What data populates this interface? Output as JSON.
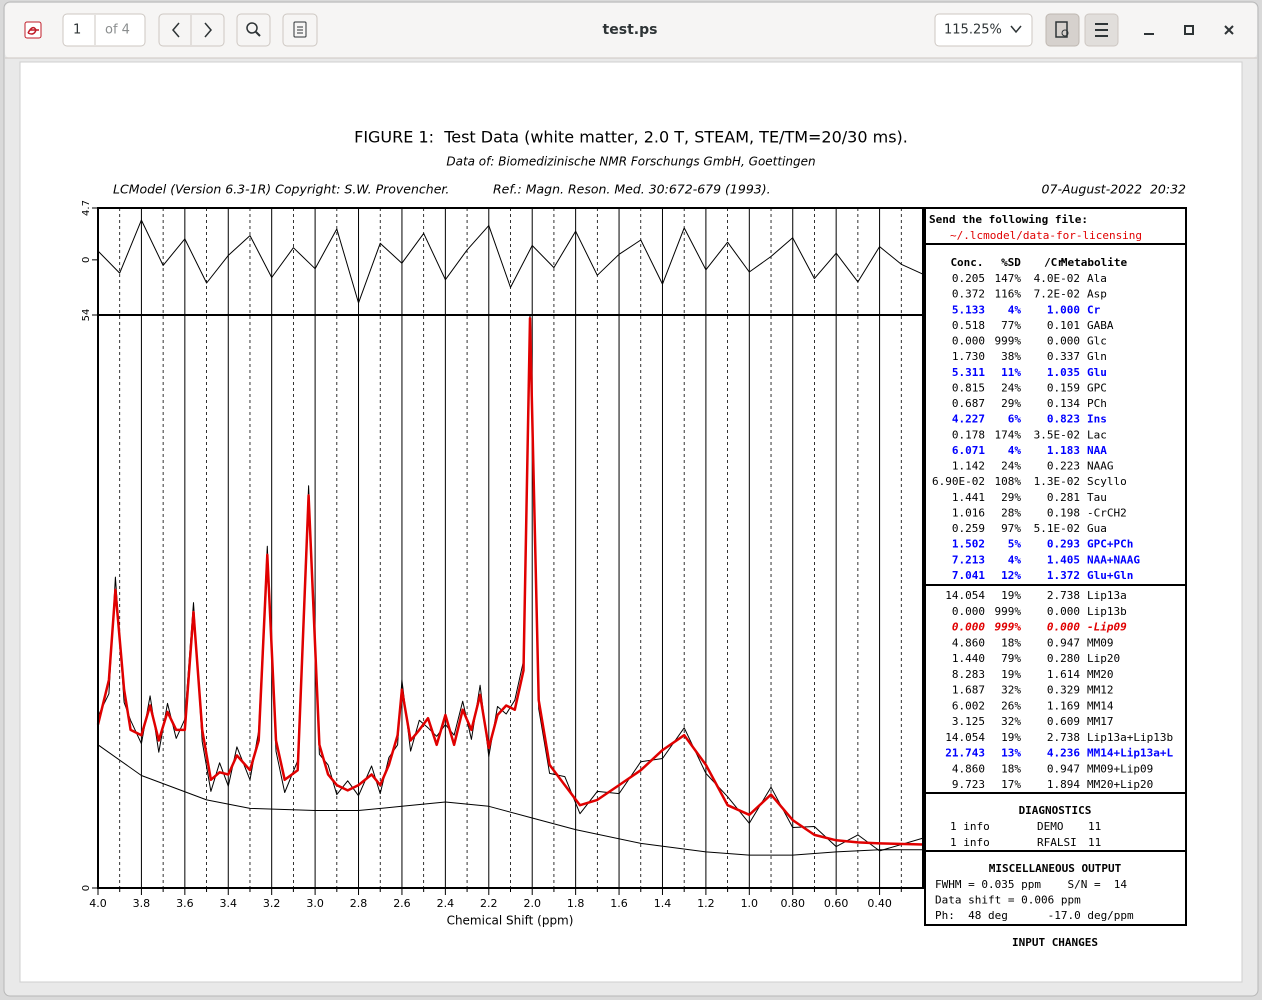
{
  "toolbar": {
    "page": "1",
    "page_count": "of 4",
    "title": "test.ps",
    "zoom": "115.25%"
  },
  "header": {
    "title": "FIGURE 1:  Test Data (white matter, 2.0 T, STEAM, TE/TM=20/30 ms).",
    "subtitle": "Data of: Biomedizinische NMR Forschungs GmbH, Goettingen",
    "version": "LCModel (Version 6.3-1R) Copyright: S.W. Provencher.",
    "reference": "Ref.: Magn. Reson. Med. 30:672-679 (1993).",
    "date": "07-August-2022  20:32"
  },
  "chart_data": {
    "type": "line",
    "xlabel": "Chemical Shift (ppm)",
    "xlim": [
      4.0,
      0.2
    ],
    "ylim": [
      0,
      54
    ],
    "yticks": [
      0,
      54
    ],
    "xticks": [
      {
        "value": 4,
        "label": "4.0"
      },
      3.8,
      3.6,
      3.4,
      3.2,
      {
        "value": 3,
        "label": "3.0"
      },
      2.8,
      2.6,
      2.4,
      2.2,
      {
        "value": 2,
        "label": "2.0"
      },
      1.8,
      1.6,
      1.4,
      1.2,
      {
        "value": 1,
        "label": "1.0"
      },
      {
        "value": 0.8,
        "label": "0.80"
      },
      {
        "value": 0.6,
        "label": "0.60"
      },
      {
        "value": 0.4,
        "label": "0.40"
      }
    ],
    "minor_xticks": [
      3.9,
      3.7,
      3.5,
      3.3,
      3.1,
      2.9,
      2.7,
      2.5,
      2.3,
      2.1,
      1.9,
      1.7,
      1.5,
      1.3,
      1.1,
      0.9,
      0.7,
      0.5,
      0.3
    ],
    "x": [
      4.0,
      3.95,
      3.92,
      3.88,
      3.85,
      3.8,
      3.76,
      3.72,
      3.68,
      3.64,
      3.6,
      3.56,
      3.52,
      3.48,
      3.44,
      3.4,
      3.36,
      3.3,
      3.26,
      3.22,
      3.18,
      3.14,
      3.08,
      3.03,
      2.98,
      2.94,
      2.9,
      2.85,
      2.8,
      2.74,
      2.7,
      2.66,
      2.62,
      2.6,
      2.56,
      2.52,
      2.48,
      2.44,
      2.4,
      2.36,
      2.32,
      2.28,
      2.24,
      2.2,
      2.16,
      2.12,
      2.08,
      2.04,
      2.01,
      1.97,
      1.92,
      1.85,
      1.78,
      1.7,
      1.6,
      1.5,
      1.4,
      1.3,
      1.2,
      1.1,
      1.0,
      0.9,
      0.8,
      0.7,
      0.6,
      0.5,
      0.4,
      0.2
    ],
    "series": [
      {
        "color": "#000000",
        "values": [
          16.2,
          18.3,
          29.3,
          17.5,
          15.8,
          13.6,
          18.1,
          12.8,
          17.4,
          14.1,
          15.9,
          26.9,
          13.8,
          9.1,
          11.8,
          9.6,
          13.3,
          10.2,
          14.8,
          32.2,
          12.9,
          9.0,
          12.0,
          37.9,
          12.6,
          11.6,
          8.8,
          10.1,
          8.7,
          11.5,
          8.9,
          12.3,
          13.5,
          19.6,
          12.9,
          15.8,
          15.1,
          14.3,
          15.4,
          14.4,
          17.6,
          14.0,
          19.1,
          12.4,
          17.1,
          16.4,
          17.7,
          21.4,
          54.0,
          16.9,
          10.8,
          10.5,
          7.0,
          9.1,
          8.9,
          11.9,
          12.2,
          15.1,
          10.8,
          8.6,
          6.1,
          9.5,
          5.7,
          5.8,
          3.9,
          5.0,
          3.5,
          4.7
        ]
      },
      {
        "color": "#e00000",
        "values": [
          15.4,
          19.6,
          28.1,
          18.7,
          14.9,
          14.4,
          17.2,
          13.9,
          16.6,
          14.9,
          14.9,
          26.0,
          14.9,
          10.2,
          10.9,
          10.7,
          12.5,
          11.1,
          13.9,
          31.4,
          13.9,
          10.2,
          11.1,
          37.0,
          13.5,
          10.7,
          9.7,
          9.2,
          9.7,
          10.7,
          9.7,
          11.6,
          14.4,
          18.7,
          13.9,
          14.9,
          16.0,
          13.5,
          16.3,
          13.5,
          16.8,
          14.9,
          18.2,
          13.2,
          16.3,
          17.2,
          16.8,
          20.5,
          53.7,
          17.7,
          11.6,
          9.7,
          7.8,
          8.3,
          9.7,
          11.1,
          13.0,
          14.4,
          11.6,
          7.8,
          6.9,
          8.8,
          6.4,
          5.0,
          4.5,
          4.3,
          4.2,
          4.1
        ]
      }
    ],
    "baseline": {
      "color": "#000000",
      "x": [
        4.0,
        3.8,
        3.5,
        3.3,
        3.0,
        2.8,
        2.6,
        2.4,
        2.2,
        2.0,
        1.8,
        1.5,
        1.2,
        1.0,
        0.8,
        0.6,
        0.4,
        0.2
      ],
      "values": [
        13.5,
        10.6,
        8.3,
        7.5,
        7.3,
        7.3,
        7.7,
        8.1,
        7.7,
        6.6,
        5.5,
        4.2,
        3.4,
        3.1,
        3.1,
        3.4,
        3.6,
        3.6
      ]
    },
    "residual": {
      "color": "#000000",
      "ylim": [
        -5,
        4.7
      ],
      "yticks": [
        0,
        4.7
      ],
      "x": [
        4.0,
        3.9,
        3.8,
        3.7,
        3.6,
        3.5,
        3.4,
        3.3,
        3.2,
        3.1,
        3.0,
        2.9,
        2.8,
        2.7,
        2.6,
        2.5,
        2.4,
        2.3,
        2.2,
        2.1,
        2.0,
        1.9,
        1.8,
        1.7,
        1.6,
        1.5,
        1.4,
        1.3,
        1.2,
        1.1,
        1.0,
        0.9,
        0.8,
        0.7,
        0.6,
        0.5,
        0.4,
        0.3,
        0.2
      ],
      "values": [
        0.8,
        -1.2,
        3.6,
        -0.5,
        1.9,
        -2.1,
        0.4,
        2.2,
        -1.6,
        1.1,
        -0.8,
        2.8,
        -3.9,
        1.5,
        -0.3,
        2.4,
        -1.8,
        0.9,
        3.1,
        -2.5,
        1.3,
        -0.7,
        2.6,
        -1.4,
        0.5,
        1.8,
        -2.2,
        2.9,
        -0.9,
        1.6,
        -1.1,
        0.3,
        2.0,
        -1.7,
        0.6,
        -2.0,
        1.2,
        -0.4,
        -1.3
      ]
    }
  },
  "results": {
    "send": {
      "label": "Send the following file:",
      "file": "~/.lcmodel/data-for-licensing"
    },
    "columns": [
      "Conc.",
      "%SD",
      "/Cr",
      "Metabolite"
    ],
    "metabolites": [
      {
        "cells": [
          "0.205",
          "147%",
          "4.0E-02",
          "Ala"
        ]
      },
      {
        "cells": [
          "0.372",
          "116%",
          "7.2E-02",
          "Asp"
        ]
      },
      {
        "cells": [
          "5.133",
          "4%",
          "1.000",
          "Cr"
        ],
        "style": "blue"
      },
      {
        "cells": [
          "0.518",
          "77%",
          "0.101",
          "GABA"
        ]
      },
      {
        "cells": [
          "0.000",
          "999%",
          "0.000",
          "Glc"
        ]
      },
      {
        "cells": [
          "1.730",
          "38%",
          "0.337",
          "Gln"
        ]
      },
      {
        "cells": [
          "5.311",
          "11%",
          "1.035",
          "Glu"
        ],
        "style": "blue"
      },
      {
        "cells": [
          "0.815",
          "24%",
          "0.159",
          "GPC"
        ]
      },
      {
        "cells": [
          "0.687",
          "29%",
          "0.134",
          "PCh"
        ]
      },
      {
        "cells": [
          "4.227",
          "6%",
          "0.823",
          "Ins"
        ],
        "style": "blue"
      },
      {
        "cells": [
          "0.178",
          "174%",
          "3.5E-02",
          "Lac"
        ]
      },
      {
        "cells": [
          "6.071",
          "4%",
          "1.183",
          "NAA"
        ],
        "style": "blue"
      },
      {
        "cells": [
          "1.142",
          "24%",
          "0.223",
          "NAAG"
        ]
      },
      {
        "cells": [
          "6.90E-02",
          "108%",
          "1.3E-02",
          "Scyllo"
        ]
      },
      {
        "cells": [
          "1.441",
          "29%",
          "0.281",
          "Tau"
        ]
      },
      {
        "cells": [
          "1.016",
          "28%",
          "0.198",
          "-CrCH2"
        ]
      },
      {
        "cells": [
          "0.259",
          "97%",
          "5.1E-02",
          "Gua"
        ]
      },
      {
        "cells": [
          "1.502",
          "5%",
          "0.293",
          "GPC+PCh"
        ],
        "style": "blue"
      },
      {
        "cells": [
          "7.213",
          "4%",
          "1.405",
          "NAA+NAAG"
        ],
        "style": "blue"
      },
      {
        "cells": [
          "7.041",
          "12%",
          "1.372",
          "Glu+Gln"
        ],
        "style": "blue"
      }
    ],
    "lipids": [
      {
        "cells": [
          "14.054",
          "19%",
          "2.738",
          "Lip13a"
        ]
      },
      {
        "cells": [
          "0.000",
          "999%",
          "0.000",
          "Lip13b"
        ]
      },
      {
        "cells": [
          "0.000",
          "999%",
          "0.000",
          "-Lip09"
        ],
        "style": "red"
      },
      {
        "cells": [
          "4.860",
          "18%",
          "0.947",
          "MM09"
        ]
      },
      {
        "cells": [
          "1.440",
          "79%",
          "0.280",
          "Lip20"
        ]
      },
      {
        "cells": [
          "8.283",
          "19%",
          "1.614",
          "MM20"
        ]
      },
      {
        "cells": [
          "1.687",
          "32%",
          "0.329",
          "MM12"
        ]
      },
      {
        "cells": [
          "6.002",
          "26%",
          "1.169",
          "MM14"
        ]
      },
      {
        "cells": [
          "3.125",
          "32%",
          "0.609",
          "MM17"
        ]
      },
      {
        "cells": [
          "14.054",
          "19%",
          "2.738",
          "Lip13a+Lip13b"
        ]
      },
      {
        "cells": [
          "21.743",
          "13%",
          "4.236",
          "MM14+Lip13a+L"
        ],
        "style": "blue"
      },
      {
        "cells": [
          "4.860",
          "18%",
          "0.947",
          "MM09+Lip09"
        ]
      },
      {
        "cells": [
          "9.723",
          "17%",
          "1.894",
          "MM20+Lip20"
        ]
      }
    ],
    "diagnostics": {
      "title": "DIAGNOSTICS",
      "rows": [
        [
          "1 info",
          "DEMO",
          "11"
        ],
        [
          "1 info",
          "RFALSI",
          "11"
        ]
      ]
    },
    "misc": {
      "title": "MISCELLANEOUS OUTPUT",
      "lines": [
        "FWHM = 0.035 ppm    S/N =  14",
        "Data shift = 0.006 ppm",
        "Ph:  48 deg      -17.0 deg/ppm"
      ]
    },
    "input_changes": "INPUT CHANGES"
  }
}
